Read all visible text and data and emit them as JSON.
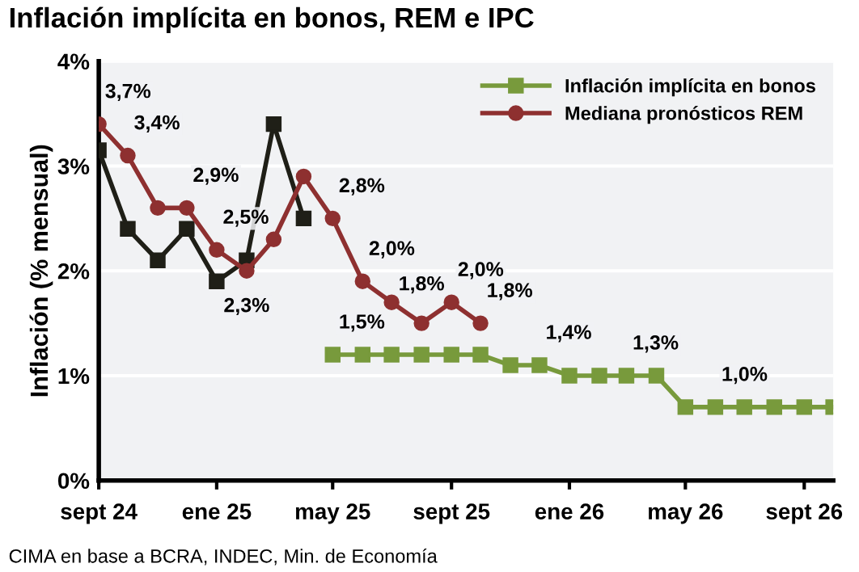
{
  "chart_data": {
    "type": "line",
    "title": "Inflación implícita en bonos, REM e IPC",
    "ylabel": "Inflación (% mensual)",
    "xlim": [
      "2024-09",
      "2026-10"
    ],
    "xticks": [
      {
        "value": "2024-09",
        "label": "sept 24"
      },
      {
        "value": "2025-01",
        "label": "ene 25"
      },
      {
        "value": "2025-05",
        "label": "may 25"
      },
      {
        "value": "2025-09",
        "label": "sept 25"
      },
      {
        "value": "2026-01",
        "label": "ene 26"
      },
      {
        "value": "2026-05",
        "label": "may 26"
      },
      {
        "value": "2026-09",
        "label": "sept 26"
      }
    ],
    "ylim": [
      0,
      4
    ],
    "yticks": [
      {
        "value": 0,
        "label": "0%"
      },
      {
        "value": 1,
        "label": "1%"
      },
      {
        "value": 2,
        "label": "2%"
      },
      {
        "value": 3,
        "label": "3%"
      },
      {
        "value": 4,
        "label": "4%"
      }
    ],
    "grid": "y",
    "legend": "top right",
    "series": [
      {
        "color": "#1f1f17",
        "marker": "square",
        "x": [
          "2024-09",
          "2024-10",
          "2024-11",
          "2024-12",
          "2025-01",
          "2025-02",
          "2025-03",
          "2025-04"
        ],
        "values": [
          3.15,
          2.4,
          2.1,
          2.4,
          1.9,
          2.1,
          3.4,
          2.5
        ]
      },
      {
        "name": "Inflación implícita en bonos",
        "color": "#789a3c",
        "marker": "square",
        "x": [
          "2025-05",
          "2025-06",
          "2025-07",
          "2025-08",
          "2025-09",
          "2025-10",
          "2025-11",
          "2025-12",
          "2026-01",
          "2026-02",
          "2026-03",
          "2026-04",
          "2026-05",
          "2026-06",
          "2026-07",
          "2026-08",
          "2026-09",
          "2026-10"
        ],
        "values": [
          1.2,
          1.2,
          1.2,
          1.2,
          1.2,
          1.2,
          1.1,
          1.1,
          1.0,
          1.0,
          1.0,
          1.0,
          0.7,
          0.7,
          0.7,
          0.7,
          0.7,
          0.7
        ]
      },
      {
        "name": "Mediana pronósticos REM",
        "color": "#8e3030",
        "marker": "circle",
        "x": [
          "2024-09",
          "2024-10",
          "2024-11",
          "2024-12",
          "2025-01",
          "2025-02",
          "2025-03",
          "2025-04",
          "2025-05",
          "2025-06",
          "2025-07",
          "2025-08",
          "2025-09",
          "2025-10"
        ],
        "values": [
          3.4,
          3.1,
          2.6,
          2.6,
          2.2,
          2.0,
          2.3,
          2.9,
          2.5,
          1.9,
          1.7,
          1.5,
          1.7,
          1.5
        ]
      }
    ],
    "annotations": [
      {
        "text": "3,7%",
        "x": "2024-09",
        "y": 3.4
      },
      {
        "text": "3,4%",
        "x": "2024-10",
        "y": 3.1
      },
      {
        "text": "2,9%",
        "x": "2024-12",
        "y": 2.6
      },
      {
        "text": "2,5%",
        "x": "2025-01",
        "y": 2.2
      },
      {
        "text": "2,3%",
        "x": "2025-02",
        "y": 2.0
      },
      {
        "text": "2,8%",
        "x": "2025-05",
        "y": 2.5
      },
      {
        "text": "2,0%",
        "x": "2025-06",
        "y": 1.9
      },
      {
        "text": "1,8%",
        "x": "2025-08",
        "y": 1.5
      },
      {
        "text": "2,0%",
        "x": "2025-09",
        "y": 1.7
      },
      {
        "text": "1,8%",
        "x": "2025-10",
        "y": 1.5
      },
      {
        "text": "1,5%",
        "x": "2025-05",
        "y": 1.2
      },
      {
        "text": "1,4%",
        "x": "2025-12",
        "y": 1.1
      },
      {
        "text": "1,3%",
        "x": "2026-03",
        "y": 1.0
      },
      {
        "text": "1,0%",
        "x": "2026-06",
        "y": 0.7
      },
      "CIMA en base a BCRA, INDEC, Min. de Economía"
    ]
  }
}
